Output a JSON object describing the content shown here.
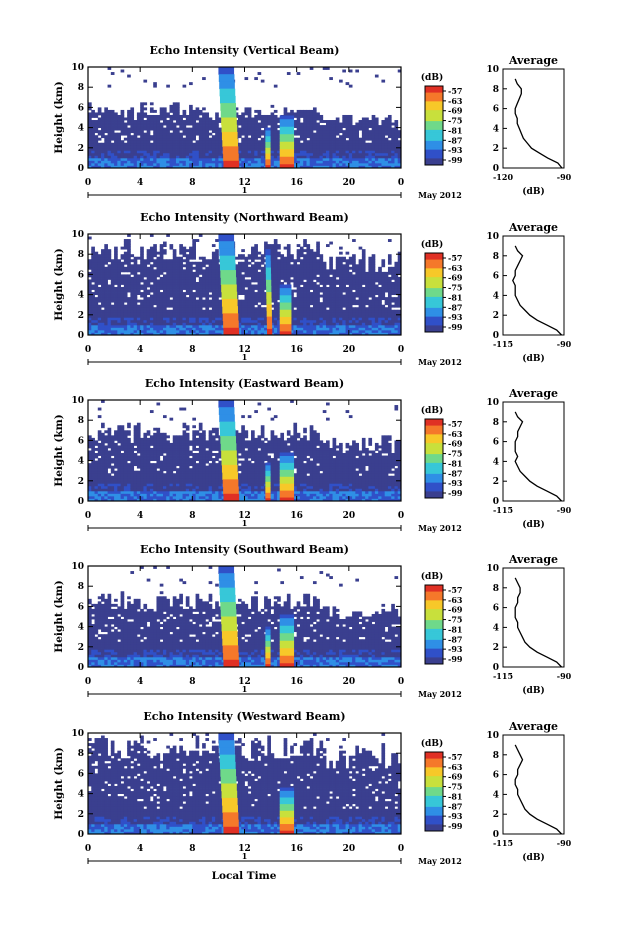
{
  "figure": {
    "xlabel": "Local Time",
    "date_label": "May 2012",
    "day_marker": "1"
  },
  "chart_data": [
    {
      "type": "heatmap",
      "title": "Echo Intensity (Vertical Beam)",
      "xlabel": "Local Time",
      "ylabel": "Height (km)",
      "xlim": [
        0,
        24
      ],
      "ylim": [
        0,
        10
      ],
      "xticks": [
        "0",
        "4",
        "8",
        "12",
        "16",
        "20",
        "0"
      ],
      "yticks": [
        "0",
        "2",
        "4",
        "6",
        "8",
        "10"
      ],
      "colorbar": {
        "unit": "(dB)",
        "ticks": [
          "-57",
          "-63",
          "-69",
          "-75",
          "-81",
          "-87",
          "-93",
          "-99"
        ],
        "colormap": "jet"
      },
      "echo_top_km": 6.4,
      "rain_bands": [
        {
          "start_hour": 10.0,
          "end_hour": 11.2,
          "top_km": 10
        },
        {
          "start_hour": 13.6,
          "end_hour": 14.0,
          "top_km": 4.0
        },
        {
          "start_hour": 14.7,
          "end_hour": 15.8,
          "top_km": 5.2
        }
      ],
      "average_profile": {
        "title": "Average",
        "xlabel": "(dB)",
        "xticks": [
          "-120",
          "-90"
        ],
        "xlim": [
          -120,
          -90
        ],
        "ylim": [
          0,
          10
        ],
        "yticks": [
          "0",
          "2",
          "4",
          "6",
          "8",
          "10"
        ],
        "height_km": [
          0,
          0.5,
          1,
          1.5,
          2,
          2.5,
          3,
          3.5,
          4,
          4.5,
          5,
          5.5,
          6,
          6.5,
          7,
          7.5,
          8,
          8.5,
          9
        ],
        "value_db": [
          -91,
          -93,
          -98,
          -102,
          -106,
          -108,
          -110,
          -111,
          -112,
          -113,
          -113,
          -114,
          -114,
          -113,
          -112,
          -111,
          -111,
          -113,
          -114
        ]
      }
    },
    {
      "type": "heatmap",
      "title": "Echo Intensity (Northward Beam)",
      "xlabel": "Local Time",
      "ylabel": "Height (km)",
      "xlim": [
        0,
        24
      ],
      "ylim": [
        0,
        10
      ],
      "xticks": [
        "0",
        "4",
        "8",
        "12",
        "16",
        "20",
        "0"
      ],
      "yticks": [
        "0",
        "2",
        "4",
        "6",
        "8",
        "10"
      ],
      "colorbar": {
        "unit": "(dB)",
        "ticks": [
          "-57",
          "-63",
          "-69",
          "-75",
          "-81",
          "-87",
          "-93",
          "-99"
        ],
        "colormap": "jet"
      },
      "echo_top_km": 9.3,
      "rain_bands": [
        {
          "start_hour": 10.0,
          "end_hour": 11.2,
          "top_km": 10
        },
        {
          "start_hour": 13.6,
          "end_hour": 14.0,
          "top_km": 8.5
        },
        {
          "start_hour": 14.7,
          "end_hour": 15.6,
          "top_km": 5.0
        }
      ],
      "average_profile": {
        "title": "Average",
        "xlabel": "(dB)",
        "xticks": [
          "-115",
          "-90"
        ],
        "xlim": [
          -115,
          -90
        ],
        "ylim": [
          0,
          10
        ],
        "yticks": [
          "0",
          "2",
          "4",
          "6",
          "8",
          "10"
        ],
        "height_km": [
          0,
          0.5,
          1,
          1.5,
          2,
          2.5,
          3,
          3.5,
          4,
          4.5,
          5,
          5.5,
          6,
          6.5,
          7,
          7.5,
          8,
          8.5,
          9
        ],
        "value_db": [
          -91,
          -93,
          -97,
          -101,
          -104,
          -106,
          -108,
          -109,
          -110,
          -110,
          -110,
          -111,
          -110,
          -110,
          -109,
          -108,
          -107,
          -109,
          -110
        ]
      }
    },
    {
      "type": "heatmap",
      "title": "Echo Intensity (Eastward Beam)",
      "xlabel": "Local Time",
      "ylabel": "Height (km)",
      "xlim": [
        0,
        24
      ],
      "ylim": [
        0,
        10
      ],
      "xticks": [
        "0",
        "4",
        "8",
        "12",
        "16",
        "20",
        "0"
      ],
      "yticks": [
        "0",
        "2",
        "4",
        "6",
        "8",
        "10"
      ],
      "colorbar": {
        "unit": "(dB)",
        "ticks": [
          "-57",
          "-63",
          "-69",
          "-75",
          "-81",
          "-87",
          "-93",
          "-99"
        ],
        "colormap": "jet"
      },
      "echo_top_km": 7.5,
      "rain_bands": [
        {
          "start_hour": 10.0,
          "end_hour": 11.2,
          "top_km": 10
        },
        {
          "start_hour": 13.6,
          "end_hour": 14.0,
          "top_km": 3.8
        },
        {
          "start_hour": 14.7,
          "end_hour": 15.8,
          "top_km": 4.8
        }
      ],
      "average_profile": {
        "title": "Average",
        "xlabel": "(dB)",
        "xticks": [
          "-115",
          "-90"
        ],
        "xlim": [
          -115,
          -90
        ],
        "ylim": [
          0,
          10
        ],
        "yticks": [
          "0",
          "2",
          "4",
          "6",
          "8",
          "10"
        ],
        "height_km": [
          0,
          0.5,
          1,
          1.5,
          2,
          2.5,
          3,
          3.5,
          4,
          4.5,
          5,
          5.5,
          6,
          6.5,
          7,
          7.5,
          8,
          8.5,
          9
        ],
        "value_db": [
          -91,
          -93,
          -97,
          -101,
          -104,
          -106,
          -108,
          -109,
          -110,
          -109,
          -110,
          -110,
          -110,
          -109,
          -109,
          -108,
          -107,
          -109,
          -110
        ]
      }
    },
    {
      "type": "heatmap",
      "title": "Echo Intensity (Southward Beam)",
      "xlabel": "Local Time",
      "ylabel": "Height (km)",
      "xlim": [
        0,
        24
      ],
      "ylim": [
        0,
        10
      ],
      "xticks": [
        "0",
        "4",
        "8",
        "12",
        "16",
        "20",
        "0"
      ],
      "yticks": [
        "0",
        "2",
        "4",
        "6",
        "8",
        "10"
      ],
      "colorbar": {
        "unit": "(dB)",
        "ticks": [
          "-57",
          "-63",
          "-69",
          "-75",
          "-81",
          "-87",
          "-93",
          "-99"
        ],
        "colormap": "jet"
      },
      "echo_top_km": 7.2,
      "rain_bands": [
        {
          "start_hour": 10.0,
          "end_hour": 11.2,
          "top_km": 10
        },
        {
          "start_hour": 13.6,
          "end_hour": 14.0,
          "top_km": 4.0
        },
        {
          "start_hour": 14.7,
          "end_hour": 15.8,
          "top_km": 5.2
        }
      ],
      "average_profile": {
        "title": "Average",
        "xlabel": "(dB)",
        "xticks": [
          "-115",
          "-90"
        ],
        "xlim": [
          -115,
          -90
        ],
        "ylim": [
          0,
          10
        ],
        "yticks": [
          "0",
          "2",
          "4",
          "6",
          "8",
          "10"
        ],
        "height_km": [
          0,
          0.5,
          1,
          1.5,
          2,
          2.5,
          3,
          3.5,
          4,
          4.5,
          5,
          5.5,
          6,
          6.5,
          7,
          7.5,
          8,
          8.5,
          9
        ],
        "value_db": [
          -91,
          -93,
          -97,
          -101,
          -104,
          -106,
          -107,
          -108,
          -109,
          -109,
          -110,
          -110,
          -110,
          -109,
          -109,
          -108,
          -108,
          -109,
          -110
        ]
      }
    },
    {
      "type": "heatmap",
      "title": "Echo Intensity (Westward Beam)",
      "xlabel": "Local Time",
      "ylabel": "Height (km)",
      "xlim": [
        0,
        24
      ],
      "ylim": [
        0,
        10
      ],
      "xticks": [
        "0",
        "4",
        "8",
        "12",
        "16",
        "20",
        "0"
      ],
      "yticks": [
        "0",
        "2",
        "4",
        "6",
        "8",
        "10"
      ],
      "colorbar": {
        "unit": "(dB)",
        "ticks": [
          "-57",
          "-63",
          "-69",
          "-75",
          "-81",
          "-87",
          "-93",
          "-99"
        ],
        "colormap": "jet"
      },
      "echo_top_km": 9.5,
      "rain_bands": [
        {
          "start_hour": 10.0,
          "end_hour": 11.2,
          "top_km": 10
        },
        {
          "start_hour": 14.7,
          "end_hour": 15.8,
          "top_km": 4.6
        }
      ],
      "average_profile": {
        "title": "Average",
        "xlabel": "(dB)",
        "xticks": [
          "-115",
          "-90"
        ],
        "xlim": [
          -115,
          -90
        ],
        "ylim": [
          0,
          10
        ],
        "yticks": [
          "0",
          "2",
          "4",
          "6",
          "8",
          "10"
        ],
        "height_km": [
          0,
          0.5,
          1,
          1.5,
          2,
          2.5,
          3,
          3.5,
          4,
          4.5,
          5,
          5.5,
          6,
          6.5,
          7,
          7.5,
          8,
          8.5,
          9
        ],
        "value_db": [
          -91,
          -93,
          -97,
          -101,
          -104,
          -106,
          -107,
          -108,
          -109,
          -109,
          -110,
          -110,
          -109,
          -109,
          -108,
          -107,
          -108,
          -109,
          -110
        ]
      }
    }
  ]
}
